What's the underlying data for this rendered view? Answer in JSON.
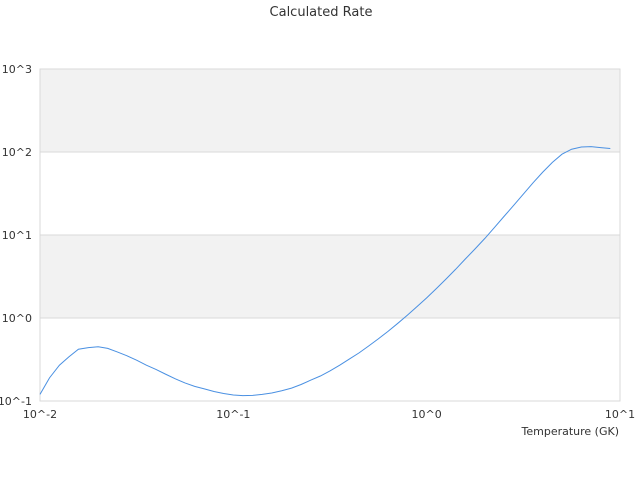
{
  "chart_data": {
    "type": "line",
    "title": "Calculated Rate",
    "xlabel": "Temperature (GK)",
    "ylabel": "",
    "x_scale": "log",
    "y_scale": "log",
    "xlim": [
      0.01,
      10
    ],
    "ylim": [
      0.1,
      1000
    ],
    "x_ticks": [
      {
        "value": 0.01,
        "label": "10^-2"
      },
      {
        "value": 0.1,
        "label": "10^-1"
      },
      {
        "value": 1,
        "label": "10^0"
      },
      {
        "value": 10,
        "label": "10^1"
      }
    ],
    "y_ticks": [
      {
        "value": 0.1,
        "label": "10^-1"
      },
      {
        "value": 1,
        "label": "10^0"
      },
      {
        "value": 10,
        "label": "10^1"
      },
      {
        "value": 100,
        "label": "10^2"
      },
      {
        "value": 1000,
        "label": "10^3"
      }
    ],
    "grid": "horizontal",
    "alternating_bands": true,
    "legend": "none",
    "colors": {
      "line": "#4a90e2",
      "band": "#f2f2f2",
      "grid": "#d9d9d9",
      "text": "#333333"
    },
    "series": [
      {
        "x": [
          0.01,
          0.0112,
          0.0126,
          0.0141,
          0.0158,
          0.0178,
          0.02,
          0.0224,
          0.0251,
          0.0282,
          0.0316,
          0.0355,
          0.0398,
          0.0447,
          0.0501,
          0.0562,
          0.0631,
          0.0708,
          0.0794,
          0.0891,
          0.1,
          0.112,
          0.126,
          0.141,
          0.158,
          0.178,
          0.2,
          0.224,
          0.251,
          0.282,
          0.316,
          0.355,
          0.398,
          0.447,
          0.501,
          0.562,
          0.631,
          0.708,
          0.794,
          0.891,
          1.0,
          1.12,
          1.26,
          1.41,
          1.58,
          1.78,
          2.0,
          2.24,
          2.51,
          2.82,
          3.16,
          3.55,
          3.98,
          4.47,
          5.01,
          5.62,
          6.31,
          7.08,
          7.94,
          8.91
        ],
        "y": [
          0.12,
          0.19,
          0.27,
          0.34,
          0.42,
          0.44,
          0.45,
          0.43,
          0.39,
          0.35,
          0.31,
          0.27,
          0.24,
          0.21,
          0.185,
          0.165,
          0.15,
          0.14,
          0.13,
          0.123,
          0.118,
          0.116,
          0.117,
          0.12,
          0.125,
          0.133,
          0.143,
          0.158,
          0.178,
          0.2,
          0.23,
          0.27,
          0.32,
          0.38,
          0.46,
          0.56,
          0.69,
          0.86,
          1.08,
          1.37,
          1.75,
          2.25,
          2.95,
          3.85,
          5.1,
          6.8,
          9.1,
          12.3,
          16.7,
          22.8,
          31.0,
          42.5,
          57.0,
          75.0,
          94.0,
          108.0,
          115.0,
          116.0,
          113.0,
          110.0
        ]
      }
    ]
  }
}
